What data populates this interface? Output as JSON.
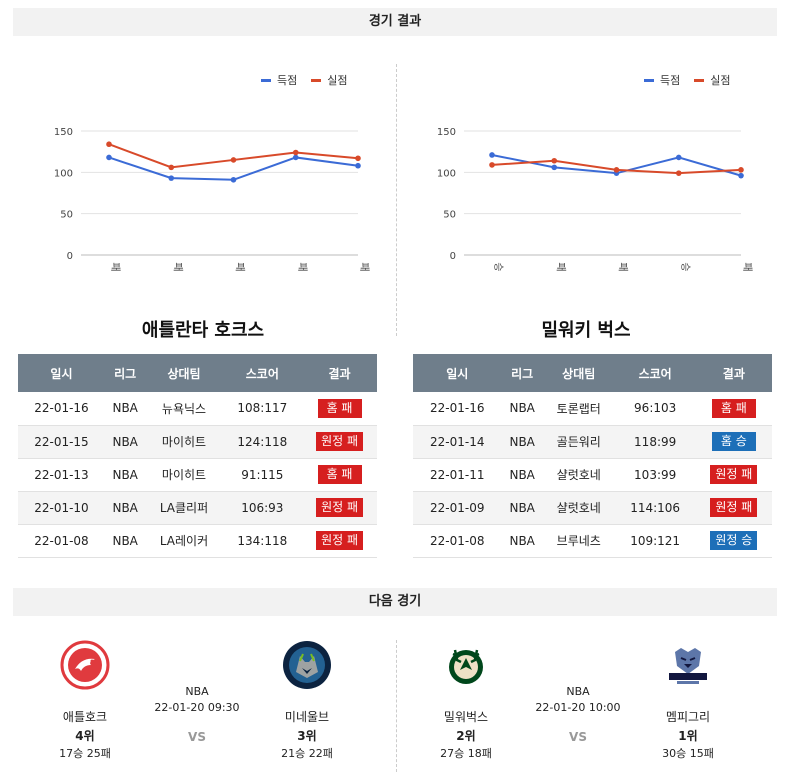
{
  "headers": {
    "results": "경기 결과",
    "next": "다음 경기"
  },
  "legend": {
    "scored": "득점",
    "conceded": "실점"
  },
  "colors": {
    "scored": "#3b6bd6",
    "conceded": "#d84a2a",
    "loss": "#d61f1f",
    "win": "#1d6fb8"
  },
  "columns": [
    "일시",
    "리그",
    "상대팀",
    "스코어",
    "결과"
  ],
  "teams": [
    {
      "title": "애틀란타 호크스",
      "games": [
        {
          "date": "22-01-16",
          "league": "NBA",
          "opponent": "뉴욕닉스",
          "score": "108:117",
          "result": "홈 패"
        },
        {
          "date": "22-01-15",
          "league": "NBA",
          "opponent": "마이히트",
          "score": "124:118",
          "result": "원정 패"
        },
        {
          "date": "22-01-13",
          "league": "NBA",
          "opponent": "마이히트",
          "score": "91:115",
          "result": "홈 패"
        },
        {
          "date": "22-01-10",
          "league": "NBA",
          "opponent": "LA클리퍼",
          "score": "106:93",
          "result": "원정 패"
        },
        {
          "date": "22-01-08",
          "league": "NBA",
          "opponent": "LA레이커",
          "score": "134:118",
          "result": "원정 패"
        }
      ]
    },
    {
      "title": "밀워키 벅스",
      "games": [
        {
          "date": "22-01-16",
          "league": "NBA",
          "opponent": "토론랩터",
          "score": "96:103",
          "result": "홈 패"
        },
        {
          "date": "22-01-14",
          "league": "NBA",
          "opponent": "골든워리",
          "score": "118:99",
          "result": "홈 승"
        },
        {
          "date": "22-01-11",
          "league": "NBA",
          "opponent": "샬럿호네",
          "score": "103:99",
          "result": "원정 패"
        },
        {
          "date": "22-01-09",
          "league": "NBA",
          "opponent": "샬럿호네",
          "score": "114:106",
          "result": "원정 패"
        },
        {
          "date": "22-01-08",
          "league": "NBA",
          "opponent": "브루네츠",
          "score": "109:121",
          "result": "원정 승"
        }
      ]
    }
  ],
  "chart_data": [
    {
      "type": "line",
      "categories": [
        "패",
        "패",
        "패",
        "패",
        "패"
      ],
      "series": [
        {
          "name": "득점",
          "values": [
            118,
            93,
            91,
            118,
            108
          ]
        },
        {
          "name": "실점",
          "values": [
            134,
            106,
            115,
            124,
            117
          ]
        }
      ],
      "yticks": [
        0,
        50,
        100,
        150
      ],
      "ylim": [
        0,
        150
      ],
      "grid": true,
      "legend": "top-right"
    },
    {
      "type": "line",
      "categories": [
        "승",
        "패",
        "패",
        "승",
        "패"
      ],
      "series": [
        {
          "name": "득점",
          "values": [
            121,
            106,
            99,
            118,
            96
          ]
        },
        {
          "name": "실점",
          "values": [
            109,
            114,
            103,
            99,
            103
          ]
        }
      ],
      "yticks": [
        0,
        50,
        100,
        150
      ],
      "ylim": [
        0,
        150
      ],
      "grid": true,
      "legend": "top-right"
    }
  ],
  "next_games": [
    {
      "league": "NBA",
      "datetime": "22-01-20 09:30",
      "vs": "VS",
      "home": {
        "name": "애틀호크",
        "rank": "4위",
        "record": "17승 25패",
        "logo": "hawks-logo"
      },
      "away": {
        "name": "미네울브",
        "rank": "3위",
        "record": "21승 22패",
        "logo": "timberwolves-logo"
      }
    },
    {
      "league": "NBA",
      "datetime": "22-01-20 10:00",
      "vs": "VS",
      "home": {
        "name": "밀워벅스",
        "rank": "2위",
        "record": "27승 18패",
        "logo": "bucks-logo"
      },
      "away": {
        "name": "멤피그리",
        "rank": "1위",
        "record": "30승 15패",
        "logo": "grizzlies-logo"
      }
    }
  ]
}
